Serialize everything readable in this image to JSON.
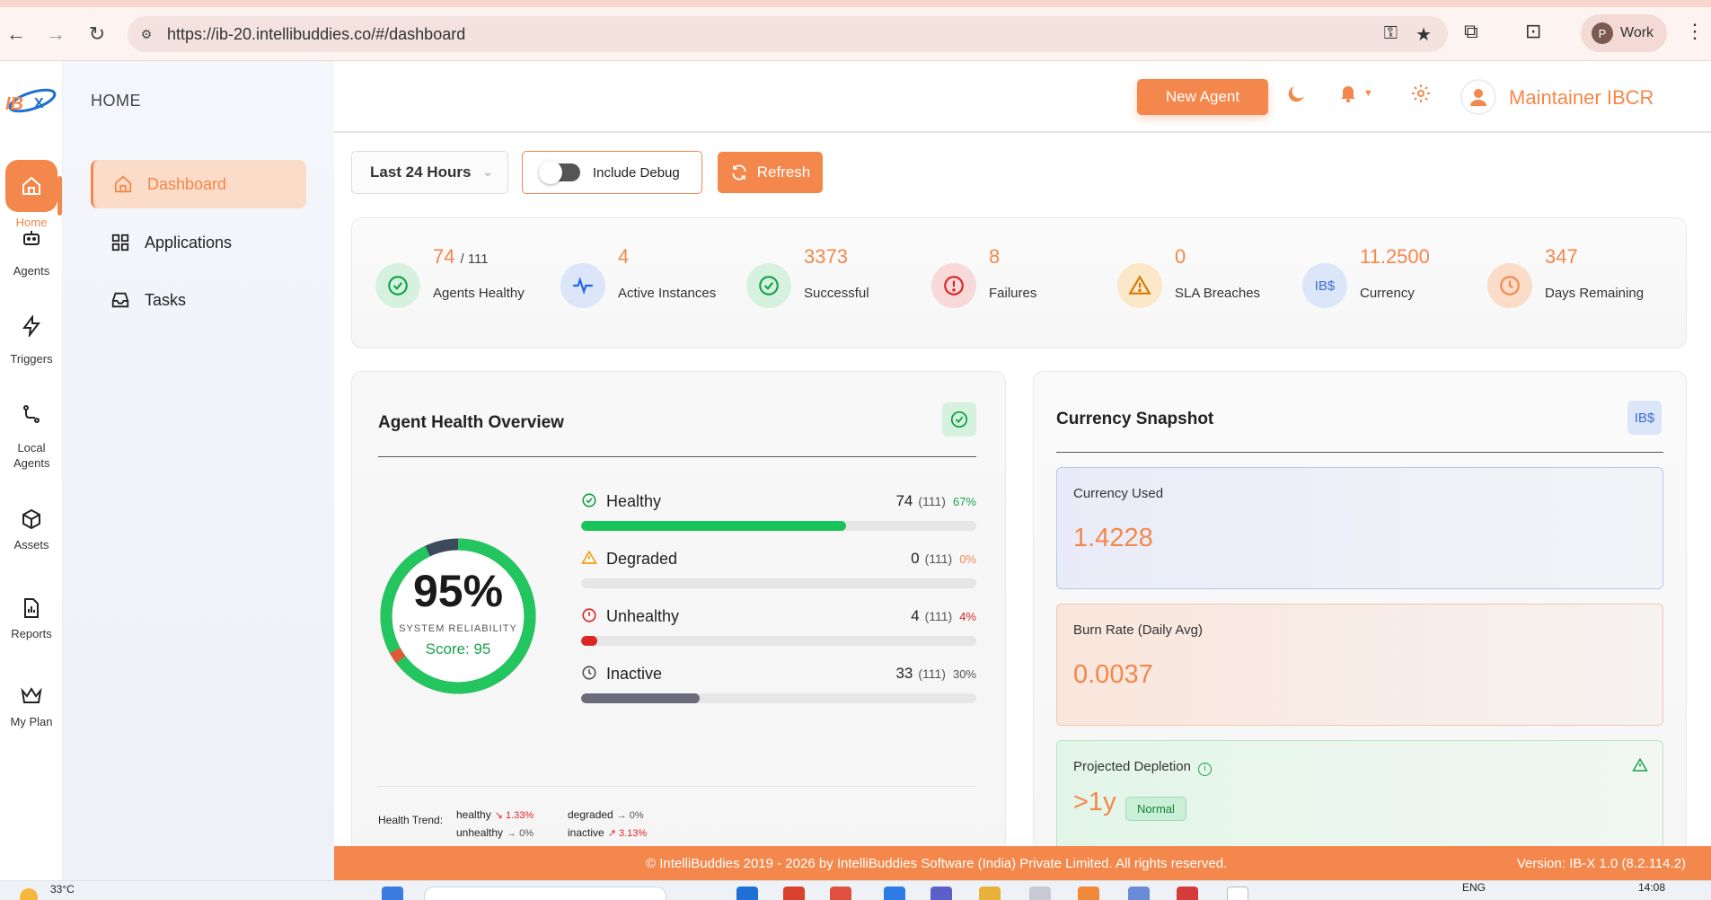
{
  "browser": {
    "url": "https://ib-20.intellibuddies.co/#/dashboard",
    "profile_initial": "P",
    "profile_label": "Work"
  },
  "rail": {
    "items": [
      {
        "label": "Home",
        "icon": "home-icon",
        "active": true
      },
      {
        "label": "Agents",
        "icon": "robot-icon"
      },
      {
        "label": "Triggers",
        "icon": "lightning-icon"
      },
      {
        "label": "Local Agents",
        "icon": "route-icon"
      },
      {
        "label": "Assets",
        "icon": "cube-icon"
      },
      {
        "label": "Reports",
        "icon": "report-icon"
      },
      {
        "label": "My Plan",
        "icon": "crown-icon"
      }
    ]
  },
  "sidebar": {
    "section": "HOME",
    "items": [
      {
        "label": "Dashboard",
        "icon": "home-icon",
        "active": true
      },
      {
        "label": "Applications",
        "icon": "grid-icon"
      },
      {
        "label": "Tasks",
        "icon": "inbox-icon"
      }
    ]
  },
  "header": {
    "new_agent": "New Agent",
    "user_name": "Maintainer IBCR"
  },
  "controls": {
    "time_range": "Last 24 Hours",
    "include_debug": "Include Debug",
    "include_debug_on": false,
    "refresh": "Refresh"
  },
  "stats": {
    "agents_healthy": {
      "value": "74",
      "total": "/ 111",
      "label": "Agents Healthy"
    },
    "active_instances": {
      "value": "4",
      "label": "Active Instances"
    },
    "successful": {
      "value": "3373",
      "label": "Successful"
    },
    "failures": {
      "value": "8",
      "label": "Failures"
    },
    "sla_breaches": {
      "value": "0",
      "label": "SLA Breaches"
    },
    "currency": {
      "value": "11.2500",
      "label": "Currency",
      "icon_text": "IB$"
    },
    "days_remaining": {
      "value": "347",
      "label": "Days Remaining"
    }
  },
  "health": {
    "title": "Agent Health Overview",
    "gauge_pct": "95%",
    "gauge_label": "SYSTEM RELIABILITY",
    "gauge_score": "Score: 95",
    "rows": [
      {
        "name": "Healthy",
        "count": "74",
        "of": "(111)",
        "pct": "67%",
        "fraction": 0.67,
        "color": "#16c45a",
        "pct_color": "#16a34a"
      },
      {
        "name": "Degraded",
        "count": "0",
        "of": "(111)",
        "pct": "0%",
        "fraction": 0,
        "color": "#f59e0b",
        "pct_color": "#f4874b"
      },
      {
        "name": "Unhealthy",
        "count": "4",
        "of": "(111)",
        "pct": "4%",
        "fraction": 0.04,
        "color": "#dc2626",
        "pct_color": "#dc2626"
      },
      {
        "name": "Inactive",
        "count": "33",
        "of": "(111)",
        "pct": "30%",
        "fraction": 0.3,
        "color": "#6b6b7b",
        "pct_color": "#555"
      }
    ],
    "trend_label": "Health Trend:",
    "trend": [
      {
        "name": "healthy",
        "value": "1.33%",
        "dir": "down",
        "color": "#dc2626"
      },
      {
        "name": "degraded",
        "value": "0%",
        "dir": "flat",
        "color": "#555"
      },
      {
        "name": "unhealthy",
        "value": "0%",
        "dir": "flat",
        "color": "#555"
      },
      {
        "name": "inactive",
        "value": "3.13%",
        "dir": "up",
        "color": "#dc2626"
      }
    ]
  },
  "currency": {
    "title": "Currency Snapshot",
    "badge": "IB$",
    "used_label": "Currency Used",
    "used_value": "1.4228",
    "burn_label": "Burn Rate (Daily Avg)",
    "burn_value": "0.0037",
    "depletion_label": "Projected Depletion",
    "depletion_value": ">1y",
    "depletion_status": "Normal"
  },
  "footer": {
    "copyright": "© IntelliBuddies 2019 - 2026 by IntelliBuddies Software (India) Private Limited. All rights reserved.",
    "version": "Version: IB-X 1.0 (8.2.114.2)"
  },
  "taskbar": {
    "temperature": "33°C",
    "language": "ENG",
    "time": "14:08"
  },
  "colors": {
    "accent": "#f4874b",
    "success": "#16a34a",
    "danger": "#dc2626"
  }
}
